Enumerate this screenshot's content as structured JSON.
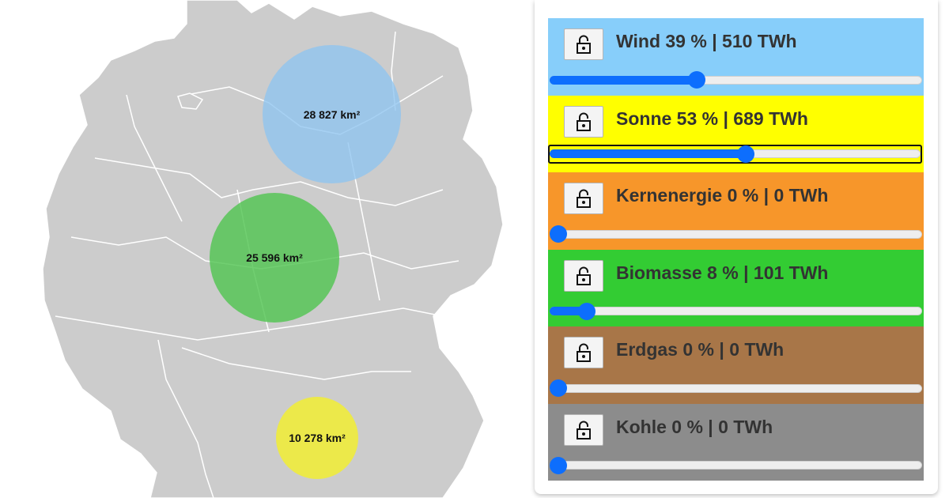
{
  "map": {
    "circles": [
      {
        "label": "28 827 km²",
        "color": "#8ec4f0"
      },
      {
        "label": "25 596 km²",
        "color": "#52c452"
      },
      {
        "label": "10 278 km²",
        "color": "#f0ec3c"
      }
    ]
  },
  "sources": [
    {
      "label": "Wind 39 % | 510 TWh",
      "percent": 39,
      "color": "#87ceFA",
      "locked": false
    },
    {
      "label": "Sonne 53 % | 689 TWh",
      "percent": 53,
      "color": "#ffff00",
      "locked": false,
      "focused": true
    },
    {
      "label": "Kernenergie 0 % | 0 TWh",
      "percent": 0,
      "color": "#f7962a",
      "locked": false
    },
    {
      "label": "Biomasse 8 % | 101 TWh",
      "percent": 8,
      "color": "#33cc33",
      "locked": false
    },
    {
      "label": "Erdgas 0 % | 0 TWh",
      "percent": 0,
      "color": "#a87648",
      "locked": false
    },
    {
      "label": "Kohle 0 % | 0 TWh",
      "percent": 0,
      "color": "#8c8c8c",
      "locked": false
    }
  ],
  "icons": {
    "lock_button": "unlock-icon"
  }
}
